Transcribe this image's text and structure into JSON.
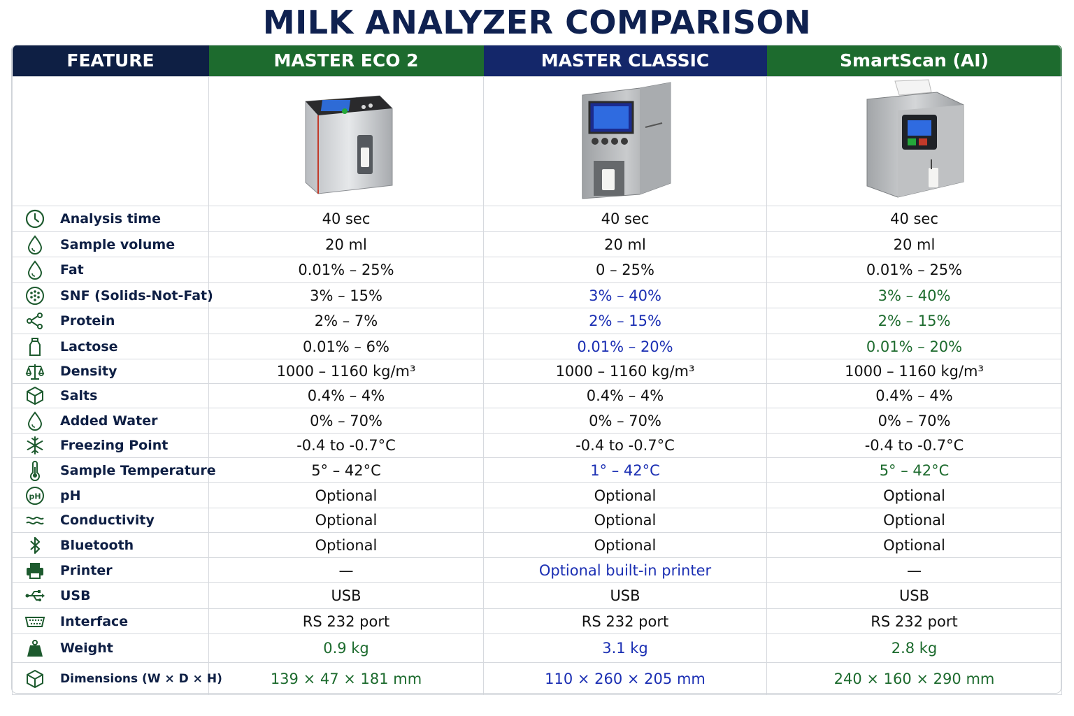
{
  "title": "MILK ANALYZER COMPARISON",
  "headers": [
    "FEATURE",
    "MASTER ECO 2",
    "MASTER CLASSIC",
    "SmartScan (AI)"
  ],
  "colors": {
    "title": "#0f2150",
    "header_dark_blue": "#0e1f44",
    "header_green": "#1d6b2e",
    "header_blue": "#14276a",
    "value_blue": "#1b2fb3",
    "value_green": "#1d6b2e"
  },
  "products": [
    {
      "name": "MASTER ECO 2",
      "image": "milk-analyzer-eco2-device"
    },
    {
      "name": "MASTER CLASSIC",
      "image": "milk-analyzer-classic-device"
    },
    {
      "name": "SmartScan (AI)",
      "image": "milk-analyzer-smartscan-device"
    }
  ],
  "rows": [
    {
      "icon": "clock-icon",
      "feature": "Analysis time",
      "eco": "40 sec",
      "classic": "40 sec",
      "smart": "40 sec",
      "eco_color": "normal",
      "classic_color": "normal",
      "smart_color": "normal"
    },
    {
      "icon": "drop-icon",
      "feature": "Sample volume",
      "eco": "20 ml",
      "classic": "20 ml",
      "smart": "20 ml",
      "eco_color": "normal",
      "classic_color": "normal",
      "smart_color": "normal"
    },
    {
      "icon": "drop-icon",
      "feature": "Fat",
      "eco": "0.01% – 25%",
      "classic": "0 – 25%",
      "smart": "0.01% – 25%",
      "eco_color": "normal",
      "classic_color": "normal",
      "smart_color": "normal"
    },
    {
      "icon": "dots-circle-icon",
      "feature": "SNF (Solids-Not-Fat)",
      "eco": "3% – 15%",
      "classic": "3% – 40%",
      "smart": "3% – 40%",
      "eco_color": "normal",
      "classic_color": "blue",
      "smart_color": "green"
    },
    {
      "icon": "share-nodes-icon",
      "feature": "Protein",
      "eco": "2% – 7%",
      "classic": "2% – 15%",
      "smart": "2% – 15%",
      "eco_color": "normal",
      "classic_color": "blue",
      "smart_color": "green"
    },
    {
      "icon": "bottle-icon",
      "feature": "Lactose",
      "eco": "0.01% – 6%",
      "classic": "0.01% – 20%",
      "smart": "0.01% – 20%",
      "eco_color": "normal",
      "classic_color": "blue",
      "smart_color": "green"
    },
    {
      "icon": "scale-icon",
      "feature": "Density",
      "eco": "1000 – 1160 kg/m³",
      "classic": "1000 – 1160 kg/m³",
      "smart": "1000 – 1160 kg/m³",
      "eco_color": "normal",
      "classic_color": "normal",
      "smart_color": "normal"
    },
    {
      "icon": "cube-icon",
      "feature": "Salts",
      "eco": "0.4% – 4%",
      "classic": "0.4% – 4%",
      "smart": "0.4% – 4%",
      "eco_color": "normal",
      "classic_color": "normal",
      "smart_color": "normal"
    },
    {
      "icon": "drop-icon",
      "feature": "Added Water",
      "eco": "0% – 70%",
      "classic": "0% – 70%",
      "smart": "0% – 70%",
      "eco_color": "normal",
      "classic_color": "normal",
      "smart_color": "normal"
    },
    {
      "icon": "snowflake-icon",
      "feature": "Freezing Point",
      "eco": "-0.4 to -0.7°C",
      "classic": "-0.4 to -0.7°C",
      "smart": "-0.4 to -0.7°C",
      "eco_color": "normal",
      "classic_color": "normal",
      "smart_color": "normal"
    },
    {
      "icon": "thermometer-icon",
      "feature": "Sample Temperature",
      "eco": "5° – 42°C",
      "classic": "1° – 42°C",
      "smart": "5° – 42°C",
      "eco_color": "normal",
      "classic_color": "blue",
      "smart_color": "green"
    },
    {
      "icon": "ph-icon",
      "feature": "pH",
      "eco": "Optional",
      "classic": "Optional",
      "smart": "Optional",
      "eco_color": "normal",
      "classic_color": "normal",
      "smart_color": "normal"
    },
    {
      "icon": "wave-icon",
      "feature": "Conductivity",
      "eco": "Optional",
      "classic": "Optional",
      "smart": "Optional",
      "eco_color": "normal",
      "classic_color": "normal",
      "smart_color": "normal"
    },
    {
      "icon": "bluetooth-icon",
      "feature": "Bluetooth",
      "eco": "Optional",
      "classic": "Optional",
      "smart": "Optional",
      "eco_color": "normal",
      "classic_color": "normal",
      "smart_color": "normal"
    },
    {
      "icon": "printer-icon",
      "feature": "Printer",
      "eco": "—",
      "classic": "Optional built-in printer",
      "smart": "—",
      "eco_color": "normal",
      "classic_color": "blue",
      "smart_color": "normal"
    },
    {
      "icon": "usb-icon",
      "feature": "USB",
      "eco": "USB",
      "classic": "USB",
      "smart": "USB",
      "eco_color": "normal",
      "classic_color": "normal",
      "smart_color": "normal"
    },
    {
      "icon": "serial-port-icon",
      "feature": "Interface",
      "eco": "RS 232 port",
      "classic": "RS 232 port",
      "smart": "RS 232 port",
      "eco_color": "normal",
      "classic_color": "normal",
      "smart_color": "normal"
    },
    {
      "icon": "weight-icon",
      "feature": "Weight",
      "eco": "0.9 kg",
      "classic": "3.1 kg",
      "smart": "2.8 kg",
      "eco_color": "green",
      "classic_color": "blue",
      "smart_color": "green"
    },
    {
      "icon": "cube-icon",
      "feature": "Dimensions (W × D × H)",
      "eco": "139 × 47 × 181 mm",
      "classic": "110 × 260 × 205 mm",
      "smart": "240 × 160 × 290 mm",
      "eco_color": "green",
      "classic_color": "blue",
      "smart_color": "green"
    }
  ]
}
